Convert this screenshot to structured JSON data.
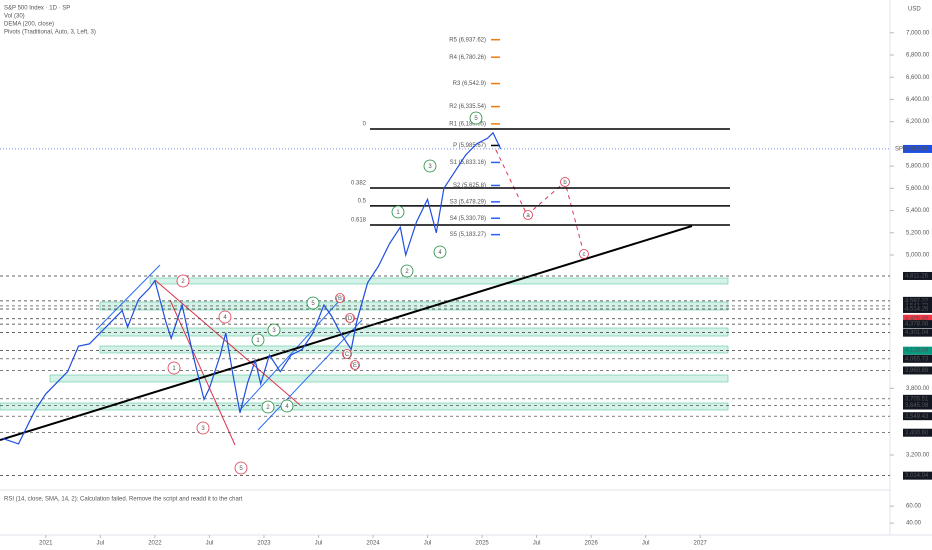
{
  "chart_data": {
    "type": "line",
    "title": "S&P 500 Index · 1D · SP",
    "indicators": [
      "Vol (30)",
      "DEMA (200, close)",
      "Pivots (Traditional, Auto, 3, Left, 3)"
    ],
    "currency": "USD",
    "x": [
      2020.6,
      2020.75,
      2020.9,
      2021.0,
      2021.1,
      2021.2,
      2021.3,
      2021.4,
      2021.5,
      2021.6,
      2021.7,
      2021.75,
      2021.85,
      2021.95,
      2022.0,
      2022.1,
      2022.15,
      2022.25,
      2022.35,
      2022.4,
      2022.45,
      2022.5,
      2022.6,
      2022.65,
      2022.72,
      2022.78,
      2022.85,
      2022.92,
      2022.97,
      2023.05,
      2023.15,
      2023.25,
      2023.35,
      2023.45,
      2023.55,
      2023.62,
      2023.7,
      2023.8,
      2023.85,
      2023.95,
      2024.05,
      2024.15,
      2024.25,
      2024.3,
      2024.4,
      2024.5,
      2024.58,
      2024.65,
      2024.75,
      2024.85,
      2024.95,
      2025.05,
      2025.1,
      2025.17
    ],
    "series": [
      {
        "name": "SPX",
        "color": "#1f4fe0",
        "values": [
          3350,
          3300,
          3600,
          3750,
          3850,
          3950,
          4180,
          4200,
          4300,
          4400,
          4500,
          4350,
          4600,
          4700,
          4770,
          4400,
          4250,
          4550,
          4100,
          3900,
          3700,
          3800,
          4100,
          4300,
          3900,
          3580,
          3850,
          4050,
          3840,
          4100,
          3950,
          4100,
          4150,
          4300,
          4550,
          4450,
          4300,
          4150,
          4400,
          4750,
          4900,
          5100,
          5250,
          5000,
          5300,
          5500,
          5200,
          5600,
          5750,
          5900,
          6000,
          6050,
          6100,
          5954.51
        ],
        "value_labels": [
          null,
          null,
          null,
          null,
          null,
          null,
          null,
          null,
          null,
          null,
          null,
          null,
          null,
          null,
          null,
          null,
          null,
          null,
          null,
          null,
          null,
          null,
          null,
          null,
          null,
          null,
          null,
          null,
          null,
          null,
          null,
          null,
          null,
          null,
          null,
          null,
          null,
          null,
          null,
          null,
          null,
          null,
          null,
          null,
          null,
          null,
          null,
          null,
          null,
          null,
          null,
          null,
          null,
          "5,954.51"
        ]
      }
    ],
    "xlim": [
      2020.58,
      2028.74
    ],
    "xticks": [
      {
        "value": 2021,
        "label": "2021"
      },
      {
        "value": 2021.5,
        "label": "Jul"
      },
      {
        "value": 2022,
        "label": "2022"
      },
      {
        "value": 2022.5,
        "label": "Jul"
      },
      {
        "value": 2023,
        "label": "2023"
      },
      {
        "value": 2023.5,
        "label": "Jul"
      },
      {
        "value": 2024,
        "label": "2024"
      },
      {
        "value": 2024.5,
        "label": "Jul"
      },
      {
        "value": 2025,
        "label": "2025"
      },
      {
        "value": 2025.5,
        "label": "Jul"
      },
      {
        "value": 2026,
        "label": "2026"
      },
      {
        "value": 2026.5,
        "label": "Jul"
      },
      {
        "value": 2027,
        "label": "2027"
      }
    ],
    "ylim": [
      2885,
      7295
    ],
    "yticks": [
      {
        "value": 7000,
        "label": "7,000.00"
      },
      {
        "value": 6800,
        "label": "6,800.00"
      },
      {
        "value": 6600,
        "label": "6,600.00"
      },
      {
        "value": 6400,
        "label": "6,400.00"
      },
      {
        "value": 6200,
        "label": "6,200.00"
      },
      {
        "value": 5800,
        "label": "5,800.00"
      },
      {
        "value": 5600,
        "label": "5,600.00"
      },
      {
        "value": 5400,
        "label": "5,400.00"
      },
      {
        "value": 5200,
        "label": "5,200.00"
      },
      {
        "value": 5000,
        "label": "5,000.00"
      },
      {
        "value": 3800,
        "label": "3,800.00"
      },
      {
        "value": 3200,
        "label": "3,200.00"
      }
    ],
    "price_levels": [
      {
        "value": 4811.26,
        "label": "4,811.26"
      },
      {
        "value": 4587.22,
        "label": "4,587.22"
      },
      {
        "value": 4541.73,
        "label": "4,541.73"
      },
      {
        "value": 4514.26,
        "label": "4,514.26"
      },
      {
        "value": 4426.45,
        "label": "4,426.45",
        "color": "#f23645"
      },
      {
        "value": 4378.06,
        "label": "4,378.06"
      },
      {
        "value": 4301.04,
        "label": "4,301.04"
      },
      {
        "value": 4139.04,
        "label": "4,139.04",
        "color": "#089981"
      },
      {
        "value": 4065.73,
        "label": "4,065.73"
      },
      {
        "value": 3960.89,
        "label": "3,960.89"
      },
      {
        "value": 3705.51,
        "label": "3,705.51"
      },
      {
        "value": 3645.08,
        "label": "3,645.08"
      },
      {
        "value": 3549.43,
        "label": "3,549.43"
      },
      {
        "value": 3400.6,
        "label": "3,400.60"
      },
      {
        "value": 3014.04,
        "label": "3,014.04"
      }
    ],
    "pivots": [
      {
        "value": 6937.62,
        "label": "R5 (6,937.62)"
      },
      {
        "value": 6780.26,
        "label": "R4 (6,780.26)"
      },
      {
        "value": 6542.9,
        "label": "R3 (6,542.9)"
      },
      {
        "value": 6335.54,
        "label": "R2 (6,335.54)"
      },
      {
        "value": 6180.05,
        "label": "R1 (6,180.05)"
      },
      {
        "value": 5985.67,
        "label": "P (5,985.67)"
      },
      {
        "value": 5833.16,
        "label": "S1 (5,833.16)"
      },
      {
        "value": 5625.8,
        "label": "S2 (5,625.8)"
      },
      {
        "value": 5478.29,
        "label": "S3 (5,478.29)"
      },
      {
        "value": 5330.78,
        "label": "S4 (5,330.78)"
      },
      {
        "value": 5183.27,
        "label": "S5 (5,183.27)"
      }
    ],
    "fib_levels": [
      {
        "value": 6134,
        "label": "0"
      },
      {
        "value": 5603,
        "label": "0.382"
      },
      {
        "value": 5442,
        "label": "0.5"
      },
      {
        "value": 5270,
        "label": "0.618"
      }
    ],
    "waves": [
      "1",
      "2",
      "3",
      "4",
      "5",
      "1",
      "2",
      "3",
      "4",
      "5",
      "1",
      "2",
      "3",
      "4",
      "5",
      "(B)",
      "(D)",
      "(C)",
      "(E)",
      "a",
      "b",
      "c"
    ],
    "rsi": {
      "text": "RSI (14, close, SMA, 14, 2): Calculation failed. Remove the script and readd it to the chart",
      "ylim": [
        26,
        79
      ],
      "yticks": [
        {
          "value": 60,
          "label": "60.00"
        },
        {
          "value": 40,
          "label": "40.00"
        }
      ]
    }
  }
}
